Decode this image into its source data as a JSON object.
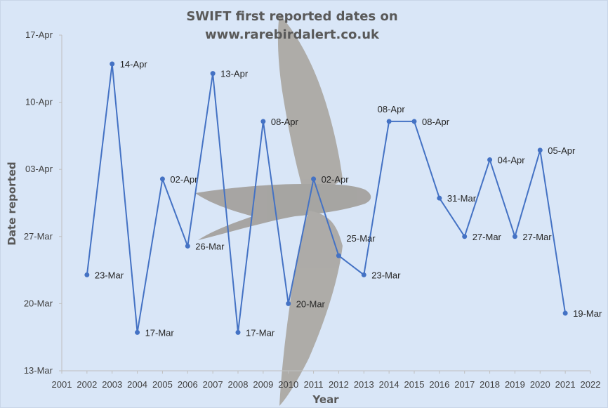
{
  "colors": {
    "background": "#d9e6f7",
    "series": "#4472c4",
    "axis": "#bfbfbf",
    "bird": "#8a7b68"
  },
  "chart_data": {
    "type": "line",
    "title": [
      "SWIFT first reported dates on",
      "www.rarebirdalert.co.uk"
    ],
    "xlabel": "Year",
    "ylabel": "Date reported",
    "x_ticks": [
      "2001",
      "2002",
      "2003",
      "2004",
      "2005",
      "2006",
      "2007",
      "2008",
      "2009",
      "2010",
      "2011",
      "2012",
      "2013",
      "2014",
      "2015",
      "2016",
      "2017",
      "2018",
      "2019",
      "2020",
      "2021",
      "2022"
    ],
    "y_ticks": [
      "13-Mar",
      "20-Mar",
      "27-Mar",
      "03-Apr",
      "10-Apr",
      "17-Apr"
    ],
    "xlim": [
      2001,
      2022
    ],
    "ylim": [
      "13-Mar",
      "17-Apr"
    ],
    "grid": false,
    "legend": "none",
    "background_image": "swift-bird-photo",
    "series": [
      {
        "x": [
          2002,
          2003,
          2004,
          2005,
          2006,
          2007,
          2008,
          2009,
          2010,
          2011,
          2012,
          2013,
          2014,
          2015,
          2016,
          2017,
          2018,
          2019,
          2020,
          2021
        ],
        "y": [
          "23-Mar",
          "14-Apr",
          "17-Mar",
          "02-Apr",
          "26-Mar",
          "13-Apr",
          "17-Mar",
          "08-Apr",
          "20-Mar",
          "02-Apr",
          "25-Mar",
          "23-Mar",
          "08-Apr",
          "08-Apr",
          "31-Mar",
          "27-Mar",
          "04-Apr",
          "27-Mar",
          "05-Apr",
          "19-Mar"
        ],
        "labels": [
          "23-Mar",
          "14-Apr",
          "17-Mar",
          "02-Apr",
          "26-Mar",
          "13-Apr",
          "17-Mar",
          "08-Apr",
          "20-Mar",
          "02-Apr",
          "25-Mar",
          "23-Mar",
          "08-Apr",
          "08-Apr",
          "31-Mar",
          "27-Mar",
          "04-Apr",
          "27-Mar",
          "05-Apr",
          "19-Mar"
        ]
      }
    ]
  }
}
